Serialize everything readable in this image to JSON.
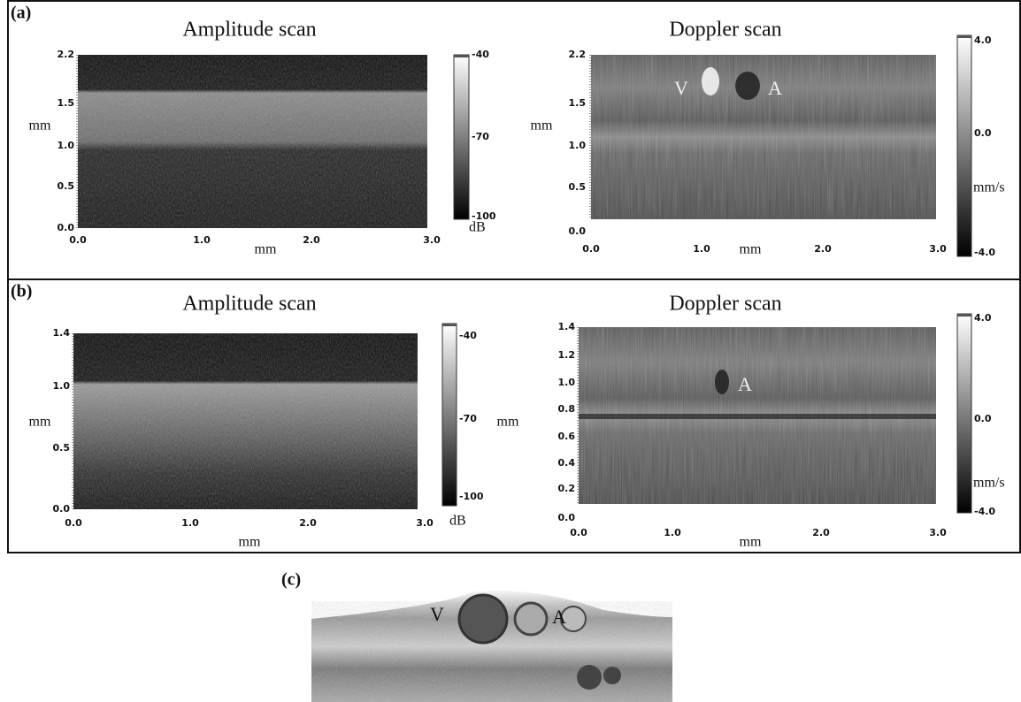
{
  "panels": [
    {
      "label": "(a)",
      "plots": [
        {
          "title": "Amplitude scan",
          "x_ticks": [
            "0.0",
            "1.0",
            "2.0",
            "3.0"
          ],
          "x_label": "mm",
          "y_ticks": [
            "2.2",
            "1.5",
            "1.0",
            "0.5",
            "0.0"
          ],
          "y_label": "mm",
          "colorbar": {
            "ticks": [
              "-40",
              "-70",
              "-100"
            ],
            "unit": "dB"
          },
          "annotations": []
        },
        {
          "title": "Doppler scan",
          "x_ticks": [
            "0.0",
            "1.0",
            "2.0",
            "3.0"
          ],
          "x_label": "mm",
          "y_ticks": [
            "2.2",
            "1.5",
            "1.0",
            "0.5",
            "0.0"
          ],
          "y_label": "mm",
          "colorbar": {
            "ticks": [
              "4.0",
              "0.0",
              "-4.0"
            ],
            "unit": "mm/s"
          },
          "annotations": [
            "V",
            "A"
          ]
        }
      ]
    },
    {
      "label": "(b)",
      "plots": [
        {
          "title": "Amplitude scan",
          "x_ticks": [
            "0.0",
            "1.0",
            "2.0",
            "3.0"
          ],
          "x_label": "mm",
          "y_ticks": [
            "1.4",
            "1.0",
            "0.5",
            "0.0"
          ],
          "y_label": "mm",
          "colorbar": {
            "ticks": [
              "-40",
              "-70",
              "-100"
            ],
            "unit": "dB"
          },
          "annotations": []
        },
        {
          "title": "Doppler scan",
          "x_ticks": [
            "0.0",
            "1.0",
            "2.0",
            "3.0"
          ],
          "x_label": "mm",
          "y_ticks": [
            "1.4",
            "1.2",
            "1.0",
            "0.8",
            "0.6",
            "0.4",
            "0.2",
            "0.0"
          ],
          "y_label": "mm",
          "colorbar": {
            "ticks": [
              "4.0",
              "0.0",
              "-4.0"
            ],
            "unit": "mm/s"
          },
          "annotations": [
            "A"
          ]
        }
      ]
    },
    {
      "label": "(c)",
      "annotations": [
        "V",
        "A"
      ]
    }
  ]
}
